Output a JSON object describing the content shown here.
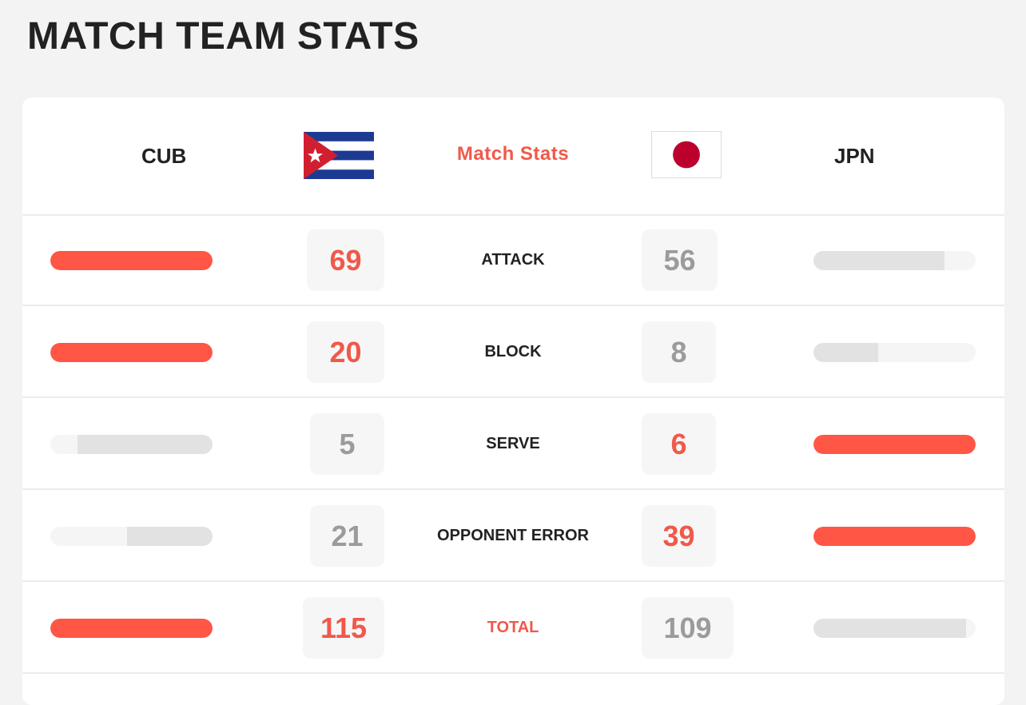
{
  "page_title": "MATCH TEAM STATS",
  "header": {
    "home_team": "CUB",
    "away_team": "JPN",
    "center_label": "Match Stats",
    "home_flag": "cuba-flag-icon",
    "away_flag": "japan-flag-icon"
  },
  "colors": {
    "accent": "#ff5645",
    "accent_text": "#f0594a",
    "bar_trailing": "#e2e2e2",
    "bar_track": "#f5f5f5",
    "value_trailing": "#9b9b9b",
    "title": "#222222"
  },
  "stats": [
    {
      "label": "ATTACK",
      "home": "69",
      "away": "56",
      "home_share": 1.0,
      "away_share": 0.81,
      "leader": "home"
    },
    {
      "label": "BLOCK",
      "home": "20",
      "away": "8",
      "home_share": 1.0,
      "away_share": 0.4,
      "leader": "home"
    },
    {
      "label": "SERVE",
      "home": "5",
      "away": "6",
      "home_share": 0.83,
      "away_share": 1.0,
      "leader": "away"
    },
    {
      "label": "OPPONENT ERROR",
      "home": "21",
      "away": "39",
      "home_share": 0.54,
      "away_share": 1.0,
      "leader": "away"
    },
    {
      "label": "TOTAL",
      "home": "115",
      "away": "109",
      "home_share": 1.0,
      "away_share": 0.95,
      "leader": "home"
    }
  ]
}
